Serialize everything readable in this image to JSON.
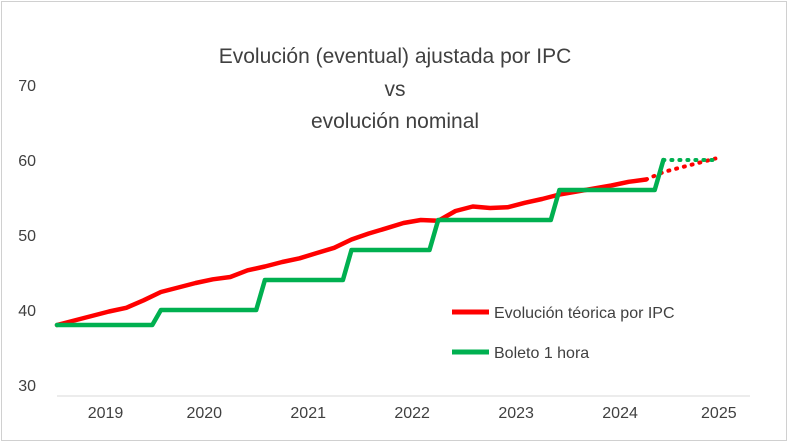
{
  "chart_data": {
    "type": "line",
    "title": [
      "Evolución (eventual) ajustada por IPC",
      "vs",
      "evolución nominal"
    ],
    "xlabel": "",
    "ylabel": "",
    "ylim": [
      30,
      70
    ],
    "yticks": [
      "30",
      "40",
      "50",
      "60",
      "70"
    ],
    "year_labels": [
      "2019",
      "2020",
      "2021",
      "2022",
      "2023",
      "2024",
      "2025"
    ],
    "grid": false,
    "legend_position": "bottom-right",
    "series": [
      {
        "name": "Evolución téorica por IPC",
        "color": "#ff0000",
        "x": [
          "2019-01",
          "2019-03",
          "2019-05",
          "2019-07",
          "2019-09",
          "2019-11",
          "2020-01",
          "2020-03",
          "2020-05",
          "2020-07",
          "2020-09",
          "2020-11",
          "2021-01",
          "2021-03",
          "2021-05",
          "2021-07",
          "2021-09",
          "2021-11",
          "2022-01",
          "2022-03",
          "2022-05",
          "2022-07",
          "2022-09",
          "2022-11",
          "2023-01",
          "2023-03",
          "2023-05",
          "2023-07",
          "2023-09",
          "2023-11",
          "2024-01",
          "2024-03",
          "2024-05",
          "2024-07",
          "2024-09",
          "2024-11",
          "2025-01",
          "2025-03",
          "2025-05"
        ],
        "values": [
          38.0,
          38.6,
          39.2,
          39.8,
          40.3,
          41.3,
          42.4,
          43.0,
          43.6,
          44.1,
          44.4,
          45.3,
          45.8,
          46.4,
          46.9,
          47.6,
          48.3,
          49.4,
          50.2,
          50.9,
          51.6,
          52.0,
          51.9,
          53.2,
          53.8,
          53.6,
          53.7,
          54.3,
          54.8,
          55.4,
          55.8,
          56.2,
          56.6,
          57.1,
          57.4,
          58.4,
          59.0,
          59.6,
          60.2
        ],
        "projected_from_index": 34
      },
      {
        "name": "Boleto 1 hora",
        "color": "#00b050",
        "x": [
          "2019-01",
          "2019-12",
          "2020-01",
          "2020-12",
          "2021-01",
          "2021-10",
          "2021-11",
          "2022-08",
          "2022-09",
          "2023-10",
          "2023-11",
          "2024-10",
          "2024-11",
          "2025-05"
        ],
        "values": [
          38,
          38,
          40,
          40,
          44,
          44,
          48,
          48,
          52,
          52,
          56,
          56,
          60,
          60
        ],
        "projected_from_index": 12
      }
    ]
  }
}
